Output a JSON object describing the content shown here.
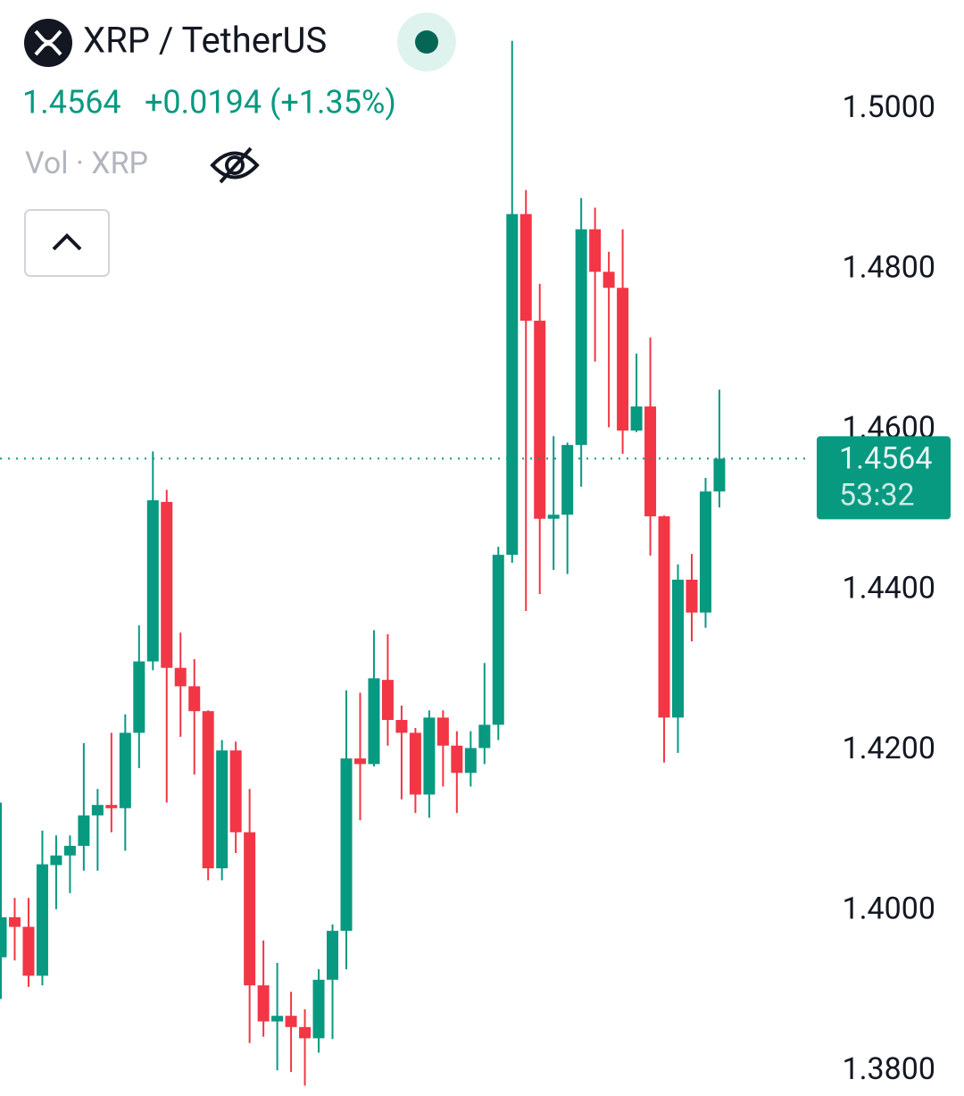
{
  "header": {
    "symbol": "XRP / TetherUS",
    "change": "+0.0194 (+1.35%)",
    "volume_label": "Vol · XRP"
  },
  "chart_data": {
    "type": "candlestick",
    "open": [
      1.3942,
      1.3992,
      1.398,
      1.3919,
      1.4057,
      1.4069,
      1.4081,
      1.4119,
      1.4132,
      1.4128,
      1.4222,
      1.4311,
      1.451,
      1.4303,
      1.428,
      1.4249,
      1.4053,
      1.42,
      1.4098,
      1.3907,
      1.3862,
      1.3869,
      1.3855,
      1.3841,
      1.3914,
      1.3975,
      1.419,
      1.4183,
      1.4288,
      1.4238,
      1.4222,
      1.4145,
      1.4241,
      1.4206,
      1.4172,
      1.4203,
      1.4232,
      1.4444,
      1.4869,
      1.4736,
      1.4489,
      1.4494,
      1.4581,
      1.485,
      1.4797,
      1.4777,
      1.4599,
      1.4629,
      1.4492,
      1.4241,
      1.4413,
      1.4372,
      1.4523
    ],
    "high": [
      1.4135,
      1.4016,
      1.4016,
      1.41,
      1.4094,
      1.4094,
      1.4209,
      1.4152,
      1.4222,
      1.4245,
      1.4356,
      1.4573,
      1.4525,
      1.4347,
      1.4314,
      1.425,
      1.4213,
      1.4211,
      1.4152,
      1.3963,
      1.3935,
      1.3899,
      1.3877,
      1.3927,
      1.3983,
      1.4275,
      1.4272,
      1.435,
      1.4345,
      1.4256,
      1.4228,
      1.425,
      1.425,
      1.4224,
      1.4224,
      1.4309,
      1.4454,
      1.5085,
      1.4899,
      1.4782,
      1.4592,
      1.4584,
      1.4889,
      1.4877,
      1.4822,
      1.485,
      1.4695,
      1.4715,
      1.4493,
      1.4432,
      1.4445,
      1.454,
      1.465
    ],
    "low": [
      1.389,
      1.3938,
      1.3905,
      1.3907,
      1.4002,
      1.4022,
      1.405,
      1.405,
      1.4098,
      1.4075,
      1.4178,
      1.43,
      1.4135,
      1.4217,
      1.417,
      1.4038,
      1.4038,
      1.4072,
      1.3835,
      1.3843,
      1.3801,
      1.3799,
      1.3782,
      1.3823,
      1.384,
      1.3927,
      1.4113,
      1.418,
      1.4206,
      1.4139,
      1.4122,
      1.4116,
      1.4155,
      1.4122,
      1.4155,
      1.4183,
      1.4213,
      1.4434,
      1.4374,
      1.4395,
      1.4425,
      1.442,
      1.4529,
      1.4685,
      1.4603,
      1.457,
      1.4597,
      1.4443,
      1.4185,
      1.4197,
      1.4336,
      1.4353,
      1.4503
    ],
    "close": [
      1.3992,
      1.398,
      1.3919,
      1.4058,
      1.4069,
      1.4081,
      1.4119,
      1.4132,
      1.4128,
      1.4222,
      1.4311,
      1.4512,
      1.4303,
      1.428,
      1.4249,
      1.4053,
      1.42,
      1.4098,
      1.3907,
      1.3862,
      1.3869,
      1.3855,
      1.3841,
      1.3914,
      1.3975,
      1.419,
      1.4183,
      1.429,
      1.4238,
      1.4222,
      1.4145,
      1.4241,
      1.4206,
      1.4172,
      1.4203,
      1.4232,
      1.4444,
      1.4869,
      1.4736,
      1.4489,
      1.4494,
      1.4581,
      1.485,
      1.4797,
      1.4777,
      1.4599,
      1.4629,
      1.4492,
      1.4241,
      1.4413,
      1.4372,
      1.4523,
      1.4564
    ],
    "up_color": "#089981",
    "down_color": "#f23645",
    "last_price": 1.4564,
    "countdown": "53:32",
    "ylim": [
      1.3769,
      1.5136
    ],
    "yticks": [
      {
        "value": 1.38,
        "label": "1.3800"
      },
      {
        "value": 1.4,
        "label": "1.4000"
      },
      {
        "value": 1.42,
        "label": "1.4200"
      },
      {
        "value": 1.44,
        "label": "1.4400"
      },
      {
        "value": 1.46,
        "label": "1.4600"
      },
      {
        "value": 1.48,
        "label": "1.4800"
      },
      {
        "value": 1.5,
        "label": "1.5000"
      }
    ],
    "grid": false
  }
}
